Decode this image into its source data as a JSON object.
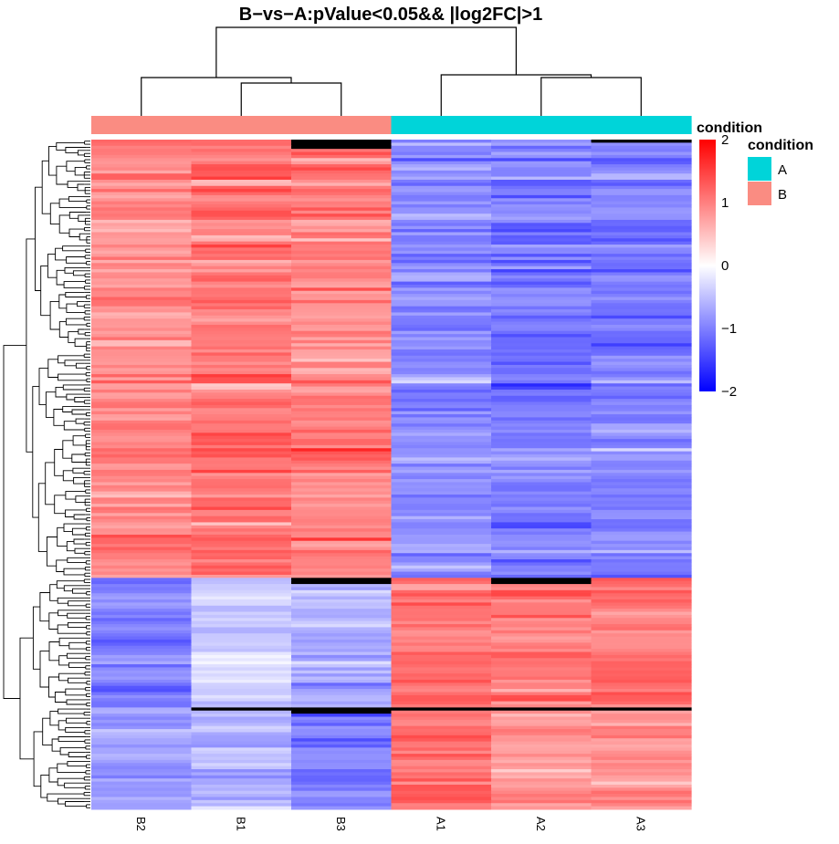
{
  "chart_data": {
    "type": "heatmap",
    "title": "B−vs−A:pValue<0.05&& |log2FC|>1",
    "columns": [
      "B2",
      "B1",
      "B3",
      "A1",
      "A2",
      "A3"
    ],
    "column_conditions": [
      "B",
      "B",
      "B",
      "A",
      "A",
      "A"
    ],
    "annotation_title": "condition",
    "legend_title": "condition",
    "legend": [
      {
        "label": "A",
        "color": "#00D4D9"
      },
      {
        "label": "B",
        "color": "#FA8C82"
      }
    ],
    "color_scale": {
      "range": [
        -2,
        2
      ],
      "ticks": [
        2,
        1,
        0,
        -1,
        -2
      ],
      "tick_labels": [
        "2",
        "1",
        "0",
        "−1",
        "−2"
      ],
      "low_color": "#0000FF",
      "mid_color": "#FFFFFF",
      "high_color": "#FF0000"
    },
    "row_clusters": [
      {
        "rows": 142,
        "means": [
          0.9,
          1.05,
          0.95,
          -0.9,
          -1.0,
          -1.0
        ]
      },
      {
        "rows": 42,
        "means": [
          -1.0,
          -0.4,
          -0.6,
          1.1,
          1.0,
          1.1
        ]
      },
      {
        "rows": 33,
        "means": [
          -0.8,
          -0.6,
          -1.0,
          1.1,
          0.8,
          0.9
        ]
      }
    ],
    "column_dendrogram": "((B2,(B1,B3)),(A1,(A2,A3)))",
    "row_dendrogram": true,
    "grid": false
  }
}
